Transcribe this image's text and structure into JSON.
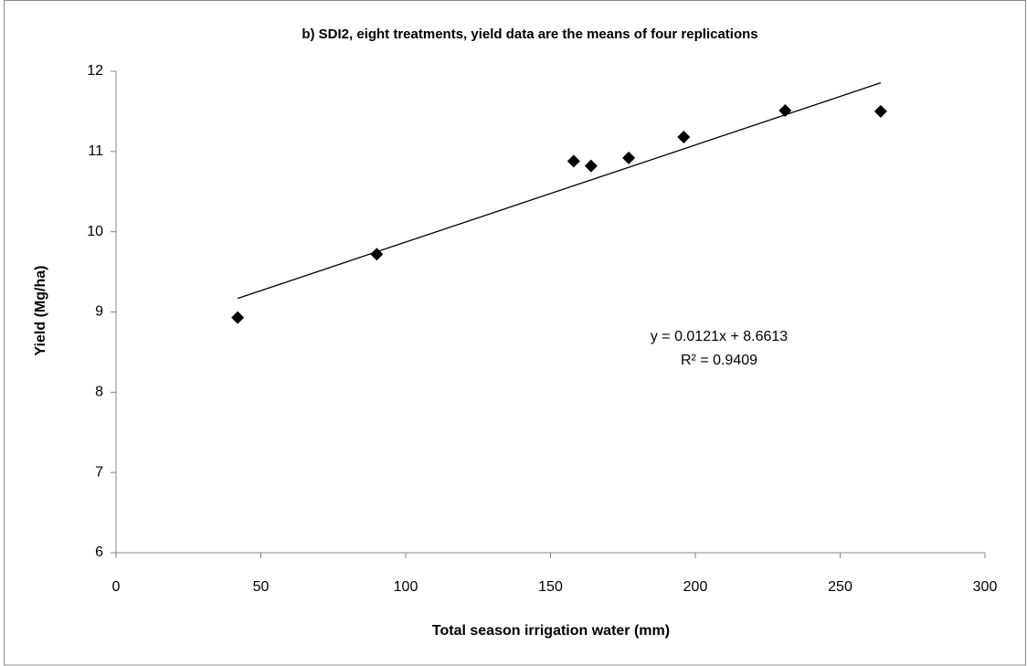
{
  "chart_data": {
    "type": "scatter",
    "title": "b) SDI2, eight treatments, yield data are the means of four replications",
    "x_label": "Total season irrigation water (mm)",
    "y_label": "Yield  (Mg/ha)",
    "series": [
      {
        "color": "#000000",
        "x": [
          42,
          90,
          158,
          164,
          177,
          196,
          231,
          264
        ],
        "values": [
          8.93,
          9.72,
          10.88,
          10.82,
          10.92,
          11.18,
          11.51,
          11.5
        ]
      }
    ],
    "trendline": {
      "slope": 0.0121,
      "intercept": 8.6613,
      "color": "#000000"
    },
    "annotations": [
      "y = 0.0121x + 8.6613",
      "R² = 0.9409"
    ],
    "xlim": [
      0,
      300
    ],
    "xticks": [
      0,
      50,
      100,
      150,
      200,
      250,
      300
    ],
    "ylim": [
      6,
      12
    ],
    "yticks": [
      6,
      7,
      8,
      9,
      10,
      11,
      12
    ],
    "grid": false
  }
}
